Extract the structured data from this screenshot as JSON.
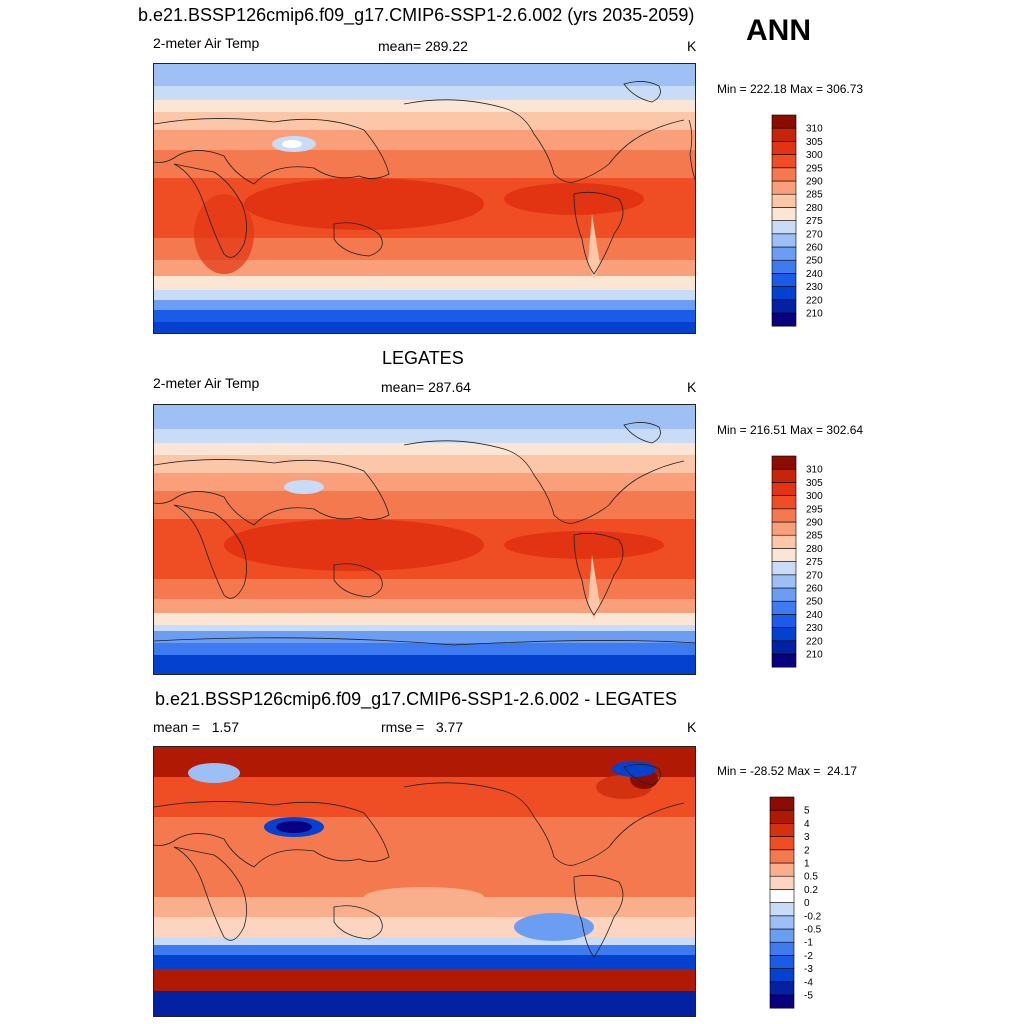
{
  "header": {
    "title": "b.e21.BSSP126cmip6.f09_g17.CMIP6-SSP1-2.6.002 (yrs 2035-2059)",
    "season": "ANN"
  },
  "panels": [
    {
      "id": "model",
      "title": "",
      "left_label": "2-meter Air Temp",
      "center_label": "mean= 289.22",
      "units": "K",
      "minmax": "Min = 222.18 Max = 306.73",
      "palette": [
        "#08007f",
        "#0321a3",
        "#0541cf",
        "#1a5be8",
        "#3e7af0",
        "#6b9df2",
        "#9cbff5",
        "#c9dcf7",
        "#fbe6d6",
        "#fcc7a8",
        "#f9a07a",
        "#f5794f",
        "#ef4e24",
        "#e23412",
        "#c62508",
        "#8b0c00"
      ],
      "levels": [
        "210",
        "220",
        "230",
        "240",
        "250",
        "260",
        "270",
        "275",
        "280",
        "285",
        "290",
        "295",
        "300",
        "305",
        "310"
      ]
    },
    {
      "id": "obs",
      "title": "LEGATES",
      "left_label": "2-meter Air Temp",
      "center_label": "mean= 287.64",
      "units": "K",
      "minmax": "Min = 216.51 Max = 302.64",
      "palette": [
        "#08007f",
        "#0321a3",
        "#0541cf",
        "#1a5be8",
        "#3e7af0",
        "#6b9df2",
        "#9cbff5",
        "#c9dcf7",
        "#fbe6d6",
        "#fcc7a8",
        "#f9a07a",
        "#f5794f",
        "#ef4e24",
        "#e23412",
        "#c62508",
        "#8b0c00"
      ],
      "levels": [
        "210",
        "220",
        "230",
        "240",
        "250",
        "260",
        "270",
        "275",
        "280",
        "285",
        "290",
        "295",
        "300",
        "305",
        "310"
      ]
    },
    {
      "id": "diff",
      "title": "b.e21.BSSP126cmip6.f09_g17.CMIP6-SSP1-2.6.002 - LEGATES",
      "left_label": "mean =   1.57",
      "center_label": "rmse =   3.77",
      "units": "K",
      "minmax": "Min = -28.52 Max =  24.17",
      "palette": [
        "#08007f",
        "#0321a3",
        "#0541cf",
        "#1a5be8",
        "#3e7af0",
        "#6b9df2",
        "#9cbff5",
        "#c9dcf7",
        "#ffffff",
        "#fcd4bf",
        "#f9ae8c",
        "#f5794f",
        "#ef4e24",
        "#d23210",
        "#b01a04",
        "#8b0c00"
      ],
      "levels": [
        "-5",
        "-4",
        "-3",
        "-2",
        "-1",
        "-0.5",
        "-0.2",
        "0",
        "0.2",
        "0.5",
        "1",
        "2",
        "3",
        "4",
        "5"
      ]
    }
  ]
}
